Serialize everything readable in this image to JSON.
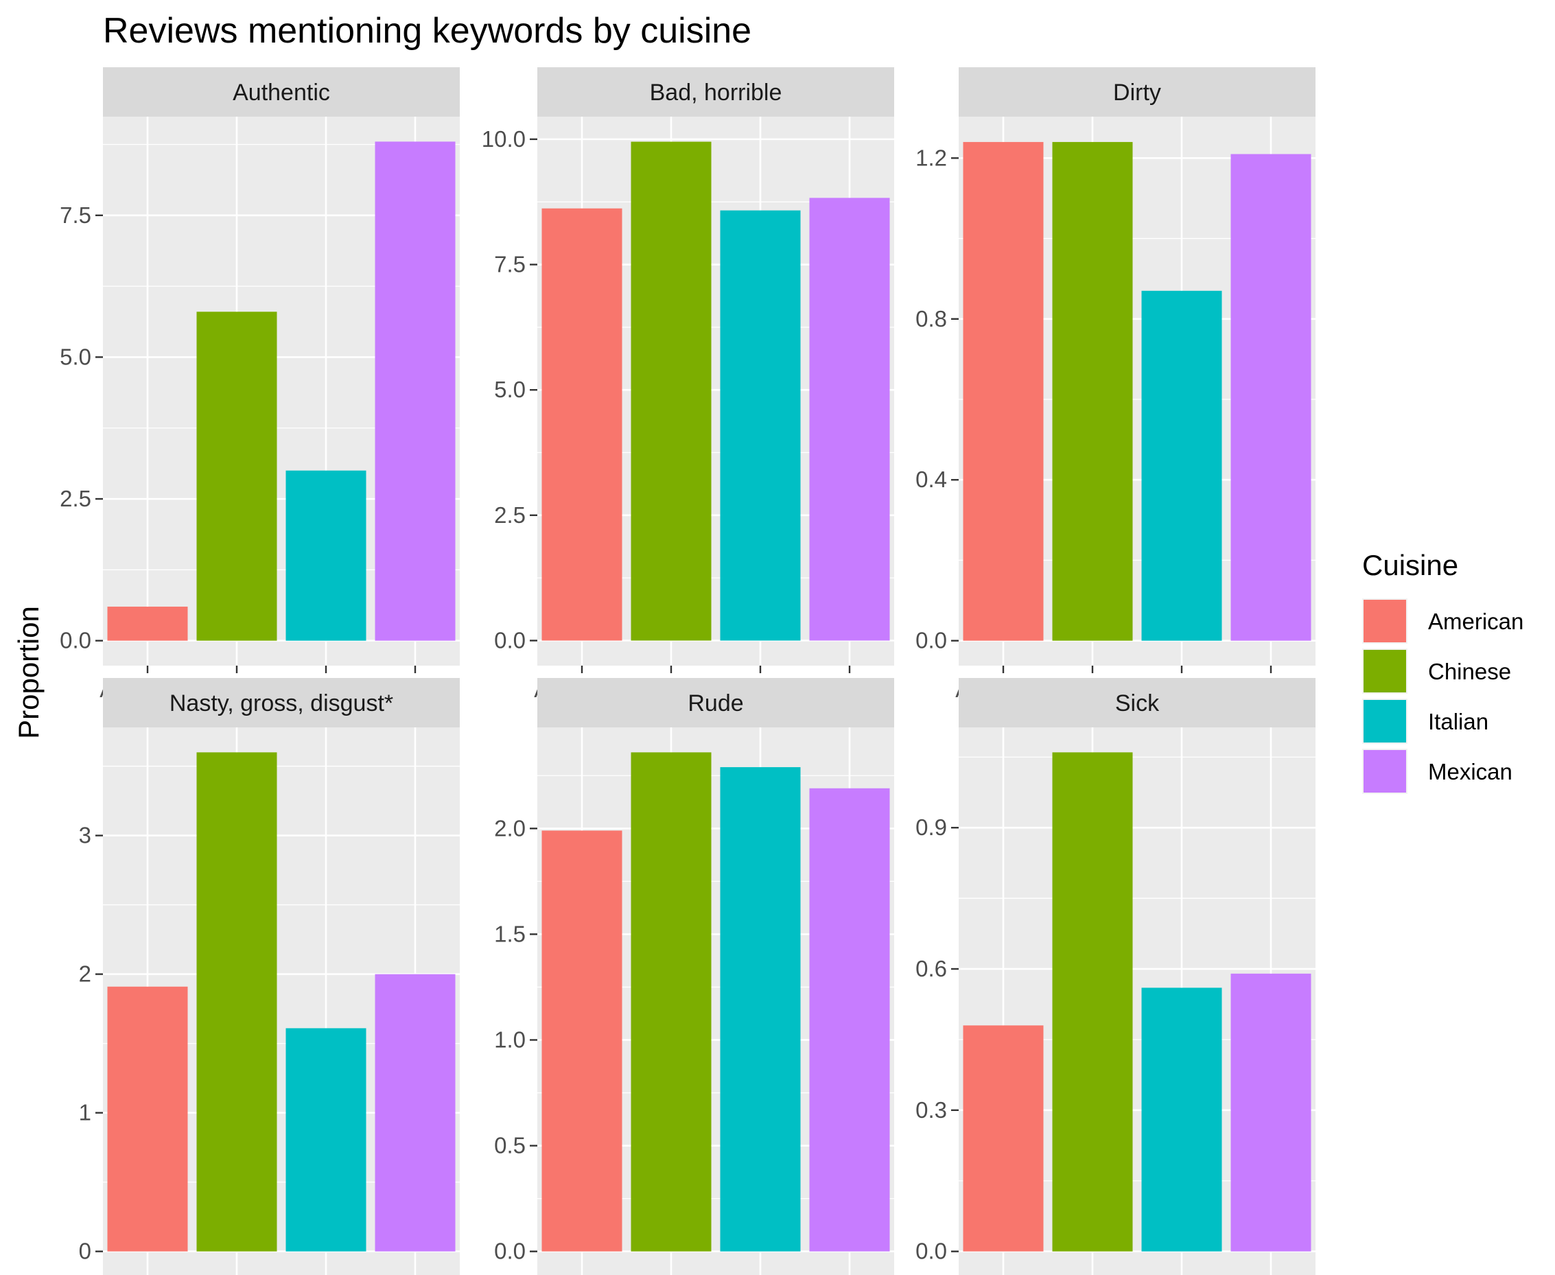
{
  "chart_data": {
    "type": "bar",
    "title": "Reviews mentioning keywords by cuisine",
    "ylabel": "Proportion",
    "xlabel": "",
    "categories": [
      "American",
      "Chinese",
      "Italian",
      "Mexican"
    ],
    "colors": {
      "American": "#F8766D",
      "Chinese": "#7CAE00",
      "Italian": "#00BFC4",
      "Mexican": "#C77CFF",
      "panel_background": "#EBEBEB",
      "strip_background": "#D9D9D9",
      "grid": "#FFFFFF"
    },
    "legend": {
      "title": "Cuisine",
      "position": "right",
      "entries": [
        "American",
        "Chinese",
        "Italian",
        "Mexican"
      ]
    },
    "grid": true,
    "facets": [
      {
        "label": "Authentic",
        "values": [
          0.6,
          5.8,
          3.0,
          8.8
        ],
        "ylim": [
          -0.44,
          9.24
        ],
        "yticks": [
          0,
          2.5,
          5,
          7.5
        ],
        "ytick_labels": [
          "0.0",
          "2.5",
          "5.0",
          "7.5"
        ]
      },
      {
        "label": "Bad, horrible",
        "values": [
          8.62,
          9.95,
          8.58,
          8.83
        ],
        "ylim": [
          -0.5,
          10.45
        ],
        "yticks": [
          0,
          2.5,
          5,
          7.5,
          10
        ],
        "ytick_labels": [
          "0.0",
          "2.5",
          "5.0",
          "7.5",
          "10.0"
        ]
      },
      {
        "label": "Dirty",
        "values": [
          1.24,
          1.24,
          0.87,
          1.21
        ],
        "ylim": [
          -0.062,
          1.303
        ],
        "yticks": [
          0,
          0.4,
          0.8,
          1.2
        ],
        "ytick_labels": [
          "0.0",
          "0.4",
          "0.8",
          "1.2"
        ]
      },
      {
        "label": "Nasty, gross, disgust*",
        "values": [
          1.91,
          3.6,
          1.61,
          2.0
        ],
        "ylim": [
          -0.18,
          3.78
        ],
        "yticks": [
          0,
          1,
          2,
          3
        ],
        "ytick_labels": [
          "0",
          "1",
          "2",
          "3"
        ]
      },
      {
        "label": "Rude",
        "values": [
          1.99,
          2.36,
          2.29,
          2.19
        ],
        "ylim": [
          -0.118,
          2.478
        ],
        "yticks": [
          0,
          0.5,
          1,
          1.5,
          2
        ],
        "ytick_labels": [
          "0.0",
          "0.5",
          "1.0",
          "1.5",
          "2.0"
        ]
      },
      {
        "label": "Sick",
        "values": [
          0.48,
          1.06,
          0.56,
          0.59
        ],
        "ylim": [
          -0.053,
          1.113
        ],
        "yticks": [
          0,
          0.3,
          0.6,
          0.9
        ],
        "ytick_labels": [
          "0.0",
          "0.3",
          "0.6",
          "0.9"
        ]
      }
    ]
  }
}
